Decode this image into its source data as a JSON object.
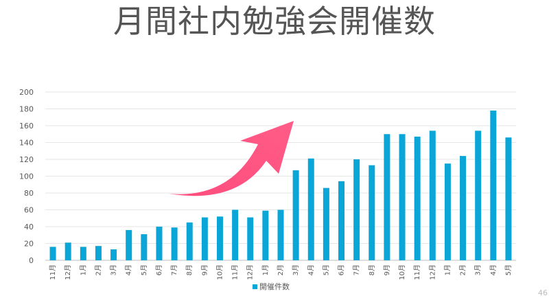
{
  "slide": {
    "title": "月間社内勉強会開催数",
    "page_number": "46"
  },
  "chart_data": {
    "type": "bar",
    "title": "",
    "xlabel": "",
    "ylabel": "",
    "ylim": [
      0,
      200
    ],
    "yticks": [
      0,
      20,
      40,
      60,
      80,
      100,
      120,
      140,
      160,
      180,
      200
    ],
    "grid": true,
    "legend_position": "bottom",
    "bar_color": "#0AA6D8",
    "grid_color": "#E6E6E6",
    "arrow_color": "#FF4D7D",
    "categories": [
      "11月",
      "12月",
      "1月",
      "2月",
      "3月",
      "4月",
      "5月",
      "6月",
      "7月",
      "8月",
      "9月",
      "10月",
      "11月",
      "12月",
      "1月",
      "2月",
      "3月",
      "4月",
      "5月",
      "6月",
      "7月",
      "8月",
      "9月",
      "10月",
      "11月",
      "12月",
      "1月",
      "2月",
      "3月",
      "4月",
      "5月"
    ],
    "series": [
      {
        "name": "開催件数",
        "values": [
          16,
          21,
          16,
          17,
          13,
          36,
          31,
          40,
          39,
          45,
          51,
          52,
          60,
          51,
          59,
          60,
          107,
          121,
          86,
          94,
          120,
          113,
          150,
          150,
          147,
          154,
          115,
          124,
          154,
          178,
          146
        ]
      }
    ]
  }
}
